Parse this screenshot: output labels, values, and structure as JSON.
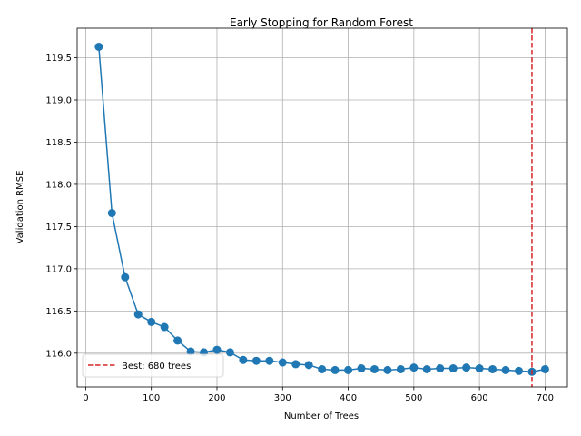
{
  "chart_data": {
    "type": "line",
    "title": "Early Stopping for Random Forest",
    "xlabel": "Number of Trees",
    "ylabel": "Validation RMSE",
    "xlim": [
      -13,
      734
    ],
    "ylim": [
      115.6,
      119.85
    ],
    "xticks": [
      0,
      100,
      200,
      300,
      400,
      500,
      600,
      700
    ],
    "yticks": [
      116.0,
      116.5,
      117.0,
      117.5,
      118.0,
      118.5,
      119.0,
      119.5
    ],
    "ytick_labels": [
      "116.0",
      "116.5",
      "117.0",
      "117.5",
      "118.0",
      "118.5",
      "119.0",
      "119.5"
    ],
    "grid": true,
    "series": [
      {
        "color": "#1f77b4",
        "marker": "circle",
        "x": [
          20,
          40,
          60,
          80,
          100,
          120,
          140,
          160,
          180,
          200,
          220,
          240,
          260,
          280,
          300,
          320,
          340,
          360,
          380,
          400,
          420,
          440,
          460,
          480,
          500,
          520,
          540,
          560,
          580,
          600,
          620,
          640,
          660,
          680,
          700
        ],
        "y": [
          119.63,
          117.66,
          116.9,
          116.46,
          116.37,
          116.31,
          116.15,
          116.02,
          116.01,
          116.04,
          116.01,
          115.92,
          115.91,
          115.91,
          115.89,
          115.87,
          115.86,
          115.81,
          115.8,
          115.8,
          115.82,
          115.81,
          115.8,
          115.81,
          115.83,
          115.81,
          115.82,
          115.82,
          115.83,
          115.82,
          115.81,
          115.8,
          115.79,
          115.78,
          115.81
        ]
      }
    ],
    "reference_line": {
      "x": 680,
      "color": "#d62728",
      "style": "dashed",
      "label": "Best: 680 trees"
    },
    "legend": {
      "position": "lower-left",
      "entries": [
        "Best: 680 trees"
      ]
    }
  }
}
